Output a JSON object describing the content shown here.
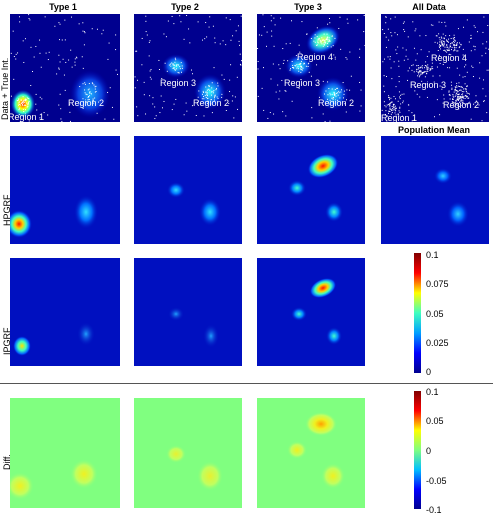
{
  "columns": [
    "Type 1",
    "Type 2",
    "Type 3",
    "All Data"
  ],
  "rows": [
    "Data + True Int.",
    "HPGRF",
    "IPGRF",
    "Diff."
  ],
  "population_mean_title": "Population Mean",
  "region_labels": {
    "type1": [
      "Region 1",
      "Region 2"
    ],
    "type2": [
      "Region 3",
      "Region 2"
    ],
    "type3": [
      "Region 4",
      "Region 3",
      "Region 2"
    ],
    "all": [
      "Region 4",
      "Region 3",
      "Region 1",
      "Region 2"
    ]
  },
  "colorbar_top": {
    "ticks": [
      "0.1",
      "0.075",
      "0.05",
      "0.025",
      "0"
    ],
    "range": [
      0,
      0.1
    ]
  },
  "colorbar_bottom": {
    "ticks": [
      "0.1",
      "0.05",
      "0",
      "-0.05",
      "-0.1"
    ],
    "range": [
      -0.1,
      0.1
    ]
  },
  "colors": {
    "background_panel": "#00008f",
    "diff_background": "#80ff80"
  }
}
